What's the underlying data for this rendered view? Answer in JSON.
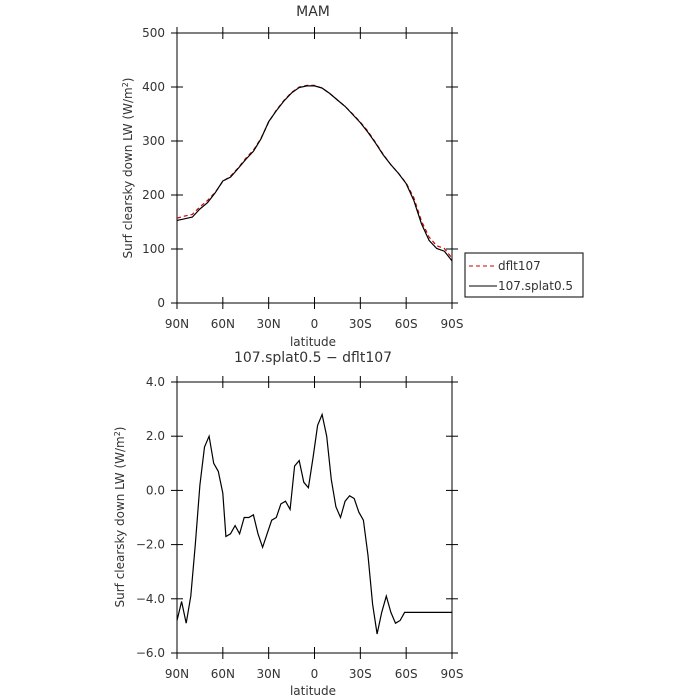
{
  "chart_data": [
    {
      "type": "line",
      "title": "MAM",
      "xlabel": "latitude",
      "ylabel": "Surf clearsky down LW (W/m",
      "ylabel_sup": "2",
      "ylabel_end": ")",
      "xlim": [
        90,
        -90
      ],
      "ylim": [
        0,
        500
      ],
      "x_ticks": [
        90,
        60,
        30,
        0,
        -30,
        -60,
        -90
      ],
      "x_tick_labels": [
        "90N",
        "60N",
        "30N",
        "0",
        "30S",
        "60S",
        "90S"
      ],
      "y_ticks": [
        0,
        100,
        200,
        300,
        400,
        500
      ],
      "y_tick_labels": [
        "0",
        "100",
        "200",
        "300",
        "400",
        "500"
      ],
      "legend": {
        "position": "right",
        "entries": [
          "dflt107",
          "107.splat0.5"
        ]
      },
      "series": [
        {
          "name": "dflt107",
          "color": "#cc0000",
          "dash": "dashed",
          "x": [
            90,
            85,
            80,
            75,
            70,
            65,
            60,
            55,
            50,
            45,
            40,
            35,
            30,
            25,
            20,
            15,
            10,
            5,
            0,
            -5,
            -10,
            -15,
            -20,
            -25,
            -30,
            -35,
            -40,
            -45,
            -50,
            -55,
            -60,
            -65,
            -70,
            -75,
            -80,
            -85,
            -90
          ],
          "y": [
            157,
            161,
            164,
            178,
            190,
            205,
            225,
            235,
            250,
            268,
            283,
            305,
            335,
            357,
            375,
            390,
            400,
            403,
            403,
            398,
            388,
            376,
            364,
            350,
            335,
            318,
            297,
            275,
            256,
            240,
            222,
            195,
            152,
            122,
            106,
            101,
            83
          ]
        },
        {
          "name": "107.splat0.5",
          "color": "#000000",
          "dash": "solid",
          "x": [
            90,
            85,
            80,
            75,
            70,
            65,
            60,
            55,
            50,
            45,
            40,
            35,
            30,
            25,
            20,
            15,
            10,
            5,
            0,
            -5,
            -10,
            -15,
            -20,
            -25,
            -30,
            -35,
            -40,
            -45,
            -50,
            -55,
            -60,
            -65,
            -70,
            -75,
            -80,
            -85,
            -90
          ],
          "y": [
            153,
            156,
            159,
            174,
            186,
            204,
            226,
            233,
            249,
            266,
            281,
            304,
            336,
            356,
            374,
            389,
            399,
            402,
            402,
            398,
            388,
            376,
            364,
            349,
            334,
            316,
            296,
            274,
            256,
            240,
            221,
            190,
            147,
            116,
            101,
            96,
            78
          ]
        }
      ]
    },
    {
      "type": "line",
      "title": "107.splat0.5 − dflt107",
      "xlabel": "latitude",
      "ylabel": "Surf clearsky down LW (W/m",
      "ylabel_sup": "2",
      "ylabel_end": ")",
      "xlim": [
        90,
        -90
      ],
      "ylim": [
        -6,
        4
      ],
      "x_ticks": [
        90,
        60,
        30,
        0,
        -30,
        -60,
        -90
      ],
      "x_tick_labels": [
        "90N",
        "60N",
        "30N",
        "0",
        "30S",
        "60S",
        "90S"
      ],
      "y_ticks": [
        -6,
        -4,
        -2,
        0,
        2,
        4
      ],
      "y_tick_labels": [
        "−6.0",
        "−4.0",
        "−2.0",
        "0.0",
        "2.0",
        "4.0"
      ],
      "series": [
        {
          "color": "#000000",
          "dash": "solid",
          "x": [
            90,
            87,
            84,
            81,
            78,
            75,
            72,
            69,
            66,
            63,
            60,
            58,
            55,
            52,
            49,
            46,
            43,
            40,
            37,
            34,
            31,
            28,
            25,
            22,
            19,
            16,
            13,
            10,
            7,
            4,
            1,
            -2,
            -5,
            -8,
            -11,
            -14,
            -17,
            -20,
            -23,
            -26,
            -29,
            -32,
            -35,
            -38,
            -41,
            -44,
            -47,
            -50,
            -53,
            -56,
            -59,
            -62,
            -65,
            -68,
            -71,
            -74,
            -77,
            -80,
            -83,
            -86,
            -90
          ],
          "y": [
            -4.8,
            -4.1,
            -4.9,
            -3.9,
            -2.0,
            0.2,
            1.6,
            2.0,
            1.0,
            0.7,
            -0.1,
            -1.7,
            -1.6,
            -1.3,
            -1.6,
            -1.0,
            -1.0,
            -0.9,
            -1.6,
            -2.1,
            -1.6,
            -1.1,
            -1.0,
            -0.5,
            -0.4,
            -0.7,
            0.9,
            1.1,
            0.3,
            0.1,
            1.2,
            2.4,
            2.8,
            2.0,
            0.4,
            -0.6,
            -1.0,
            -0.4,
            -0.2,
            -0.3,
            -0.8,
            -1.1,
            -2.4,
            -4.2,
            -5.3,
            -4.5,
            -3.9,
            -4.5,
            -4.9,
            -4.8,
            -4.5,
            -4.5,
            -4.5,
            -4.5,
            -4.5,
            -4.5,
            -4.5,
            -4.5,
            -4.5,
            -4.5,
            -4.5
          ]
        }
      ]
    }
  ]
}
